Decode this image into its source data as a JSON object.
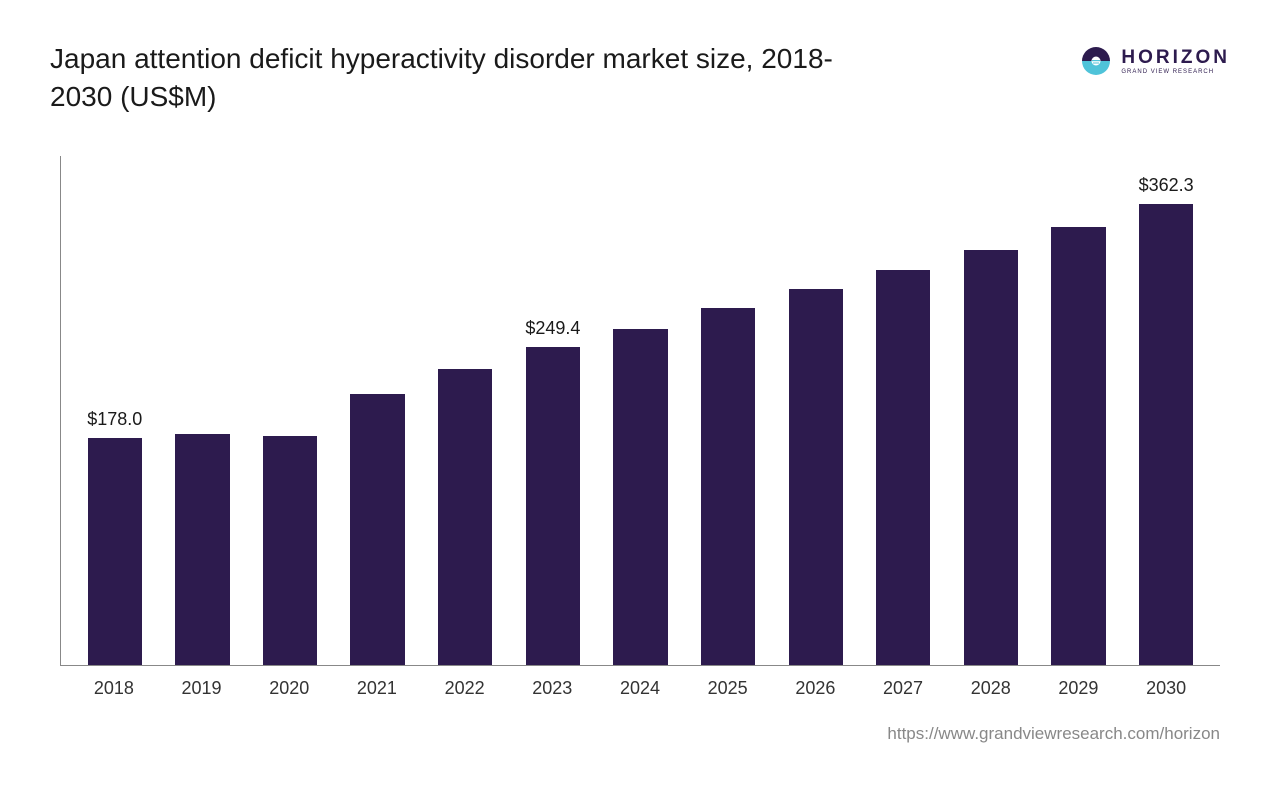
{
  "title": "Japan attention deficit hyperactivity disorder market size, 2018-2030 (US$M)",
  "logo": {
    "name": "HORIZON",
    "sub": "GRAND VIEW RESEARCH",
    "primary_color": "#2d1b4e",
    "accent_color": "#4fc3d9"
  },
  "source_url": "https://www.grandviewresearch.com/horizon",
  "chart": {
    "type": "bar",
    "categories": [
      "2018",
      "2019",
      "2020",
      "2021",
      "2022",
      "2023",
      "2024",
      "2025",
      "2026",
      "2027",
      "2028",
      "2029",
      "2030"
    ],
    "values": [
      178.0,
      181.0,
      180.0,
      213.0,
      232.0,
      249.4,
      264.0,
      280.0,
      295.0,
      310.0,
      326.0,
      344.0,
      362.3
    ],
    "value_labels": {
      "0": "$178.0",
      "5": "$249.4",
      "12": "$362.3"
    },
    "bar_color": "#2d1b4e",
    "background_color": "#ffffff",
    "axis_color": "#888888",
    "text_color": "#1a1a1a",
    "title_fontsize": 28,
    "tick_fontsize": 18,
    "label_fontsize": 18,
    "ylim": [
      0,
      400
    ],
    "bar_width_ratio": 0.62
  }
}
